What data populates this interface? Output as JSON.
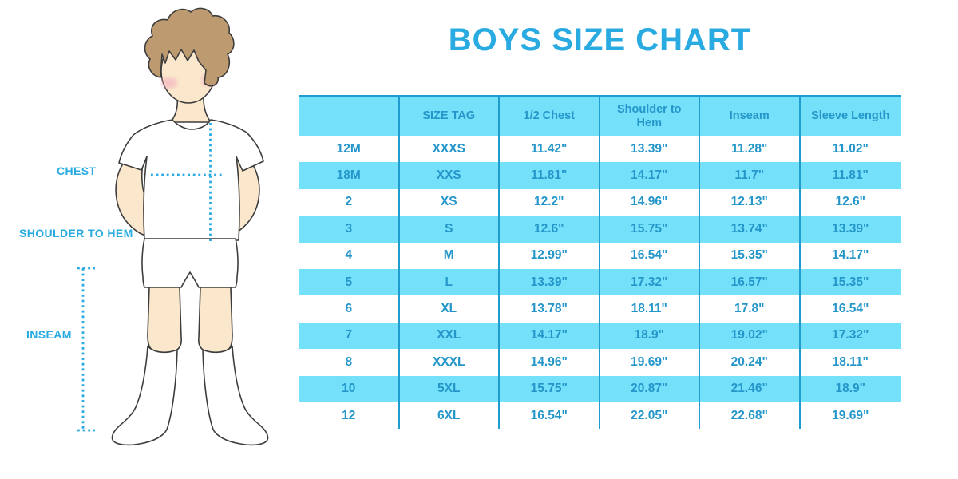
{
  "title": "BOYS SIZE CHART",
  "diagram": {
    "labels": {
      "chest": "CHEST",
      "shoulder_to_hem": "SHOULDER TO HEM",
      "inseam": "INSEAM"
    }
  },
  "colors": {
    "accent_blue": "#29ABE2",
    "table_band_cyan": "#74E0FA",
    "table_text_blue": "#2496C9",
    "table_divider_blue": "#1E9CD0",
    "skin": "#FBE8CC",
    "hair_brown": "#BD9A6F",
    "outline": "#3D3D3D",
    "blush_pink": "#F2A9BD"
  },
  "chart_data": {
    "type": "table",
    "title": "BOYS SIZE CHART",
    "columns": [
      "",
      "SIZE TAG",
      "1/2 Chest",
      "Shoulder to\nHem",
      "Inseam",
      "Sleeve Length"
    ],
    "rows": [
      [
        "12M",
        "XXXS",
        "11.42\"",
        "13.39\"",
        "11.28\"",
        "11.02\""
      ],
      [
        "18M",
        "XXS",
        "11.81\"",
        "14.17\"",
        "11.7\"",
        "11.81\""
      ],
      [
        "2",
        "XS",
        "12.2\"",
        "14.96\"",
        "12.13\"",
        "12.6\""
      ],
      [
        "3",
        "S",
        "12.6\"",
        "15.75\"",
        "13.74\"",
        "13.39\""
      ],
      [
        "4",
        "M",
        "12.99\"",
        "16.54\"",
        "15.35\"",
        "14.17\""
      ],
      [
        "5",
        "L",
        "13.39\"",
        "17.32\"",
        "16.57\"",
        "15.35\""
      ],
      [
        "6",
        "XL",
        "13.78\"",
        "18.11\"",
        "17.8\"",
        "16.54\""
      ],
      [
        "7",
        "XXL",
        "14.17\"",
        "18.9\"",
        "19.02\"",
        "17.32\""
      ],
      [
        "8",
        "XXXL",
        "14.96\"",
        "19.69\"",
        "20.24\"",
        "18.11\""
      ],
      [
        "10",
        "5XL",
        "15.75\"",
        "20.87\"",
        "21.46\"",
        "18.9\""
      ],
      [
        "12",
        "6XL",
        "16.54\"",
        "22.05\"",
        "22.68\"",
        "19.69\""
      ]
    ]
  }
}
